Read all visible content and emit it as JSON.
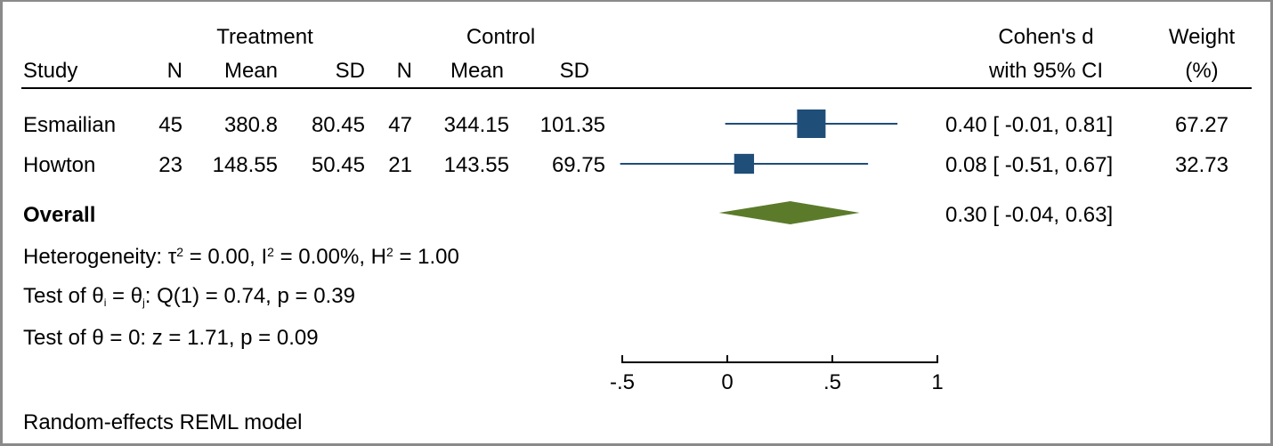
{
  "header": {
    "treatment": "Treatment",
    "control": "Control",
    "study": "Study",
    "n_t": "N",
    "mean_t": "Mean",
    "sd_t": "SD",
    "n_c": "N",
    "mean_c": "Mean",
    "sd_c": "SD",
    "effect_line1": "Cohen's d",
    "effect_line2": "with 95% CI",
    "weight_line1": "Weight",
    "weight_line2": "(%)"
  },
  "rows": [
    {
      "study": "Esmailian",
      "n_t": "45",
      "mean_t": "380.8",
      "sd_t": "80.45",
      "n_c": "47",
      "mean_c": "344.15",
      "sd_c": "101.35",
      "ci_text": "0.40 [ -0.01,  0.81]",
      "weight": "67.27"
    },
    {
      "study": "Howton",
      "n_t": "23",
      "mean_t": "148.55",
      "sd_t": "50.45",
      "n_c": "21",
      "mean_c": "143.55",
      "sd_c": "69.75",
      "ci_text": "0.08 [ -0.51,  0.67]",
      "weight": "32.73"
    }
  ],
  "overall": {
    "label": "Overall",
    "ci_text": "0.30 [ -0.04,  0.63]"
  },
  "stats": {
    "heterogeneity_prefix": "Heterogeneity: τ",
    "heterogeneity_mid1": " = 0.00, I",
    "heterogeneity_mid2": " = 0.00%, H",
    "heterogeneity_end": " = 1.00",
    "sup2": "2",
    "test1_prefix": "Test of θ",
    "test1_sub_i": "i",
    "test1_mid": " = θ",
    "test1_sub_j": "j",
    "test1_end": ": Q(1) = 0.74, p = 0.39",
    "test2": "Test of θ = 0: z = 1.71, p = 0.09"
  },
  "footer": "Random-effects REML model",
  "colors": {
    "study_marker": "#1f4e79",
    "overall_diamond": "#5b7b2b",
    "axis": "#000000"
  },
  "chart_data": {
    "type": "forest",
    "xlim": [
      -0.5,
      1
    ],
    "ticks": [
      -0.5,
      0,
      0.5,
      1
    ],
    "tick_labels": [
      "-.5",
      "0",
      ".5",
      "1"
    ],
    "studies": [
      {
        "name": "Esmailian",
        "d": 0.4,
        "lo": -0.01,
        "hi": 0.81,
        "weight": 67.27
      },
      {
        "name": "Howton",
        "d": 0.08,
        "lo": -0.51,
        "hi": 0.67,
        "weight": 32.73
      }
    ],
    "overall": {
      "d": 0.3,
      "lo": -0.04,
      "hi": 0.63
    }
  }
}
